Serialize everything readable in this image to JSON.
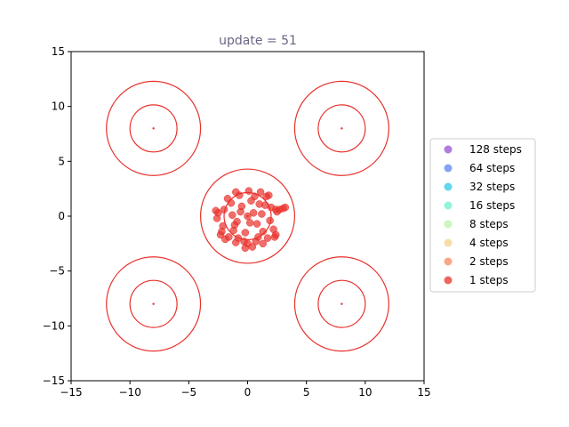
{
  "chart_data": {
    "type": "scatter",
    "title": "update = 51",
    "xlabel": "",
    "ylabel": "",
    "xlim": [
      -15,
      15
    ],
    "ylim": [
      -15,
      15
    ],
    "x_ticks": [
      -15,
      -10,
      -5,
      0,
      5,
      10,
      15
    ],
    "y_ticks": [
      -15,
      -10,
      -5,
      0,
      5,
      10,
      15
    ],
    "x_tick_labels": [
      "−15",
      "−10",
      "−5",
      "0",
      "5",
      "10",
      "15"
    ],
    "y_tick_labels": [
      "−15",
      "−10",
      "−5",
      "0",
      "5",
      "10",
      "15"
    ],
    "grid": false,
    "legend_placement": "outside-right",
    "contours": {
      "color": "#e8312b",
      "centers": [
        [
          -8,
          8
        ],
        [
          8,
          8
        ],
        [
          -8,
          -8
        ],
        [
          8,
          -8
        ],
        [
          0,
          0
        ]
      ],
      "radii": [
        2,
        4
      ]
    },
    "series": [
      {
        "name": "128 steps",
        "color": "#9a4fd0",
        "values": []
      },
      {
        "name": "64 steps",
        "color": "#5a86f0",
        "values": []
      },
      {
        "name": "32 steps",
        "color": "#2ec8e6",
        "values": []
      },
      {
        "name": "16 steps",
        "color": "#6df2cf",
        "values": []
      },
      {
        "name": "8 steps",
        "color": "#b8f5a5",
        "values": []
      },
      {
        "name": "4 steps",
        "color": "#f0d38a",
        "values": []
      },
      {
        "name": "2 steps",
        "color": "#f78a5e",
        "values": []
      },
      {
        "name": "1 steps",
        "color": "#e8312b",
        "values": [
          [
            0.0,
            0.0
          ],
          [
            0.5,
            0.3
          ],
          [
            -0.6,
            0.4
          ],
          [
            0.8,
            -0.7
          ],
          [
            -0.9,
            -0.5
          ],
          [
            1.2,
            0.2
          ],
          [
            -1.3,
            0.1
          ],
          [
            0.3,
            1.4
          ],
          [
            -0.2,
            -1.5
          ],
          [
            1.5,
            1.0
          ],
          [
            -1.4,
            1.2
          ],
          [
            1.3,
            -1.4
          ],
          [
            -1.2,
            -1.3
          ],
          [
            0.6,
            1.8
          ],
          [
            -0.7,
            1.9
          ],
          [
            0.9,
            -1.9
          ],
          [
            -0.8,
            -2.0
          ],
          [
            1.9,
            -0.4
          ],
          [
            -2.0,
            0.6
          ],
          [
            0.1,
            2.3
          ],
          [
            -0.3,
            -2.3
          ],
          [
            2.0,
            0.8
          ],
          [
            -2.1,
            -0.9
          ],
          [
            1.6,
            1.8
          ],
          [
            -1.7,
            1.6
          ],
          [
            1.7,
            -2.0
          ],
          [
            -1.6,
            -1.9
          ],
          [
            2.2,
            -1.2
          ],
          [
            -2.2,
            -1.4
          ],
          [
            0.4,
            -2.8
          ],
          [
            -0.2,
            -2.9
          ],
          [
            -1.0,
            2.2
          ],
          [
            1.1,
            2.2
          ],
          [
            2.5,
            0.4
          ],
          [
            -2.5,
            0.3
          ],
          [
            2.7,
            0.6
          ],
          [
            3.0,
            0.7
          ],
          [
            3.2,
            0.8
          ],
          [
            2.4,
            0.6
          ],
          [
            -2.7,
            0.5
          ],
          [
            -2.6,
            -0.2
          ],
          [
            -2.3,
            -1.7
          ],
          [
            -1.9,
            -2.1
          ],
          [
            2.4,
            -1.7
          ],
          [
            2.3,
            -1.9
          ],
          [
            0.7,
            -2.3
          ],
          [
            -0.5,
            0.9
          ],
          [
            0.2,
            -0.6
          ],
          [
            1.0,
            1.1
          ],
          [
            -1.1,
            -0.8
          ],
          [
            1.8,
            1.9
          ],
          [
            -1.0,
            -2.4
          ],
          [
            1.3,
            -2.5
          ],
          [
            0.0,
            -2.5
          ]
        ]
      }
    ]
  }
}
